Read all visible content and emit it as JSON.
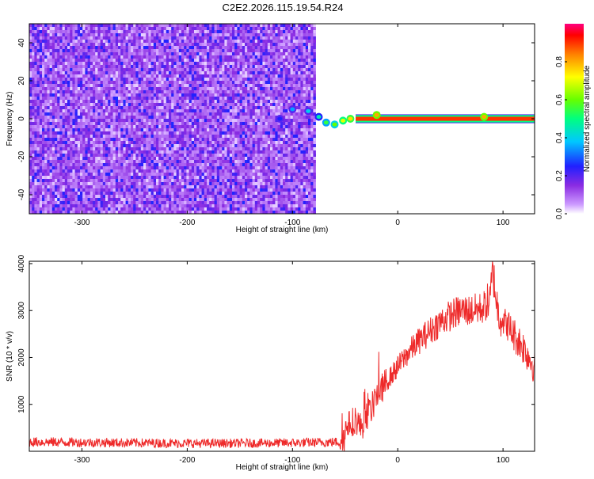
{
  "figure_title": "C2E2.2026.115.19.54.R24",
  "colors": {
    "snr_line": "#ee2a2a",
    "axis": "#000000",
    "background": "#ffffff"
  },
  "chart_data": [
    {
      "type": "heatmap",
      "title": "C2E2.2026.115.19.54.R24",
      "xlabel": "Height of straight line (km)",
      "ylabel": "Frequency (Hz)",
      "xlim": [
        -350,
        130
      ],
      "ylim": [
        -50,
        50
      ],
      "xticks": [
        -300,
        -200,
        -100,
        0,
        100
      ],
      "yticks": [
        -40,
        -20,
        0,
        20,
        40
      ],
      "noise_region_x": [
        -350,
        -78
      ],
      "dc_band": {
        "x": [
          -40,
          130
        ],
        "freq_half_width": 1.5,
        "value": 1.0
      },
      "transition_points": [
        {
          "x": -112,
          "freq": 0,
          "value": 0.25
        },
        {
          "x": -100,
          "freq": 5,
          "value": 0.35
        },
        {
          "x": -85,
          "freq": 4,
          "value": 0.4
        },
        {
          "x": -75,
          "freq": 1,
          "value": 0.45
        },
        {
          "x": -68,
          "freq": -2,
          "value": 0.55
        },
        {
          "x": -60,
          "freq": -3,
          "value": 0.6
        },
        {
          "x": -52,
          "freq": -1,
          "value": 0.7
        },
        {
          "x": -45,
          "freq": 0,
          "value": 0.75
        },
        {
          "x": -20,
          "freq": 2,
          "value": 0.8
        },
        {
          "x": 82,
          "freq": 1,
          "value": 0.8
        }
      ],
      "colorbar": {
        "label": "Normalized spectral amplitude",
        "range": [
          0,
          1
        ],
        "ticks": [
          "0.0",
          "0.2",
          "0.4",
          "0.6",
          "0.8"
        ]
      }
    },
    {
      "type": "line",
      "xlabel": "Height of straight line (km)",
      "ylabel": "SNR (10 * v/v)",
      "xlim": [
        -350,
        130
      ],
      "ylim": [
        0,
        4050
      ],
      "xticks": [
        -300,
        -200,
        -100,
        0,
        100
      ],
      "yticks": [
        1000,
        2000,
        3000,
        4000
      ],
      "series": [
        {
          "name": "SNR",
          "x": [
            -350,
            -300,
            -250,
            -200,
            -150,
            -100,
            -75,
            -55,
            -50,
            -45,
            -40,
            -35,
            -30,
            -25,
            -20,
            -10,
            0,
            10,
            20,
            30,
            40,
            50,
            60,
            70,
            80,
            88,
            90,
            95,
            100,
            110,
            120,
            130
          ],
          "y": [
            200,
            190,
            180,
            170,
            170,
            180,
            190,
            200,
            400,
            600,
            700,
            500,
            750,
            900,
            1200,
            1500,
            1800,
            2100,
            2350,
            2550,
            2750,
            2900,
            3000,
            3000,
            3050,
            3200,
            3900,
            3000,
            2800,
            2500,
            2200,
            1800
          ]
        }
      ]
    }
  ]
}
